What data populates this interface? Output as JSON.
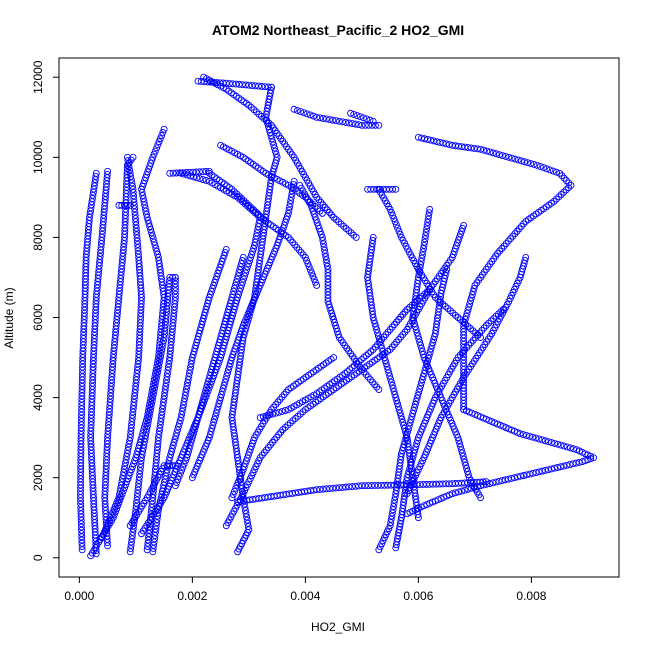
{
  "chart_data": {
    "type": "scatter",
    "title": "ATOM2 Northeast_Pacific_2 HO2_GMI",
    "xlabel": "HO2_GMI",
    "ylabel": "Altitude (m)",
    "xlim": [
      -0.00036,
      0.00955
    ],
    "ylim": [
      -480,
      12480
    ],
    "x_ticks": [
      0,
      0.002,
      0.004,
      0.006,
      0.008
    ],
    "x_tick_labels": [
      "0.000",
      "0.002",
      "0.004",
      "0.006",
      "0.008"
    ],
    "y_ticks": [
      0,
      2000,
      4000,
      6000,
      8000,
      10000,
      12000
    ],
    "y_tick_labels": [
      "0",
      "2000",
      "4000",
      "6000",
      "8000",
      "10000",
      "12000"
    ],
    "marker": "open-circle",
    "color": "#0000ff",
    "grid": false,
    "legend": "none",
    "profiles": [
      [
        [
          5e-05,
          200
        ],
        [
          2e-05,
          1500
        ],
        [
          3e-05,
          3000
        ],
        [
          6e-05,
          5000
        ],
        [
          0.0001,
          6500
        ],
        [
          0.00012,
          7500
        ],
        [
          0.00018,
          8500
        ],
        [
          0.0003,
          9600
        ]
      ],
      [
        [
          0.0003,
          100
        ],
        [
          0.00025,
          1500
        ],
        [
          0.0002,
          3000
        ],
        [
          0.00025,
          5000
        ],
        [
          0.0003,
          6500
        ],
        [
          0.0004,
          8000
        ],
        [
          0.0005,
          9650
        ]
      ],
      [
        [
          0.0005,
          300
        ],
        [
          0.00045,
          1500
        ],
        [
          0.0005,
          3000
        ],
        [
          0.0006,
          5000
        ],
        [
          0.0007,
          6500
        ],
        [
          0.0008,
          8000
        ],
        [
          0.00085,
          9800
        ],
        [
          0.00095,
          10000
        ]
      ],
      [
        [
          0.0004,
          500
        ],
        [
          0.0007,
          1500
        ],
        [
          0.0009,
          3000
        ],
        [
          0.00105,
          5000
        ],
        [
          0.0011,
          6500
        ],
        [
          0.00105,
          7500
        ],
        [
          0.00095,
          9200
        ],
        [
          0.00085,
          10000
        ]
      ],
      [
        [
          0.0002,
          50
        ],
        [
          0.0006,
          1000
        ],
        [
          0.001,
          2500
        ],
        [
          0.0012,
          3500
        ],
        [
          0.0014,
          5000
        ],
        [
          0.0015,
          6500
        ],
        [
          0.0014,
          7500
        ],
        [
          0.0012,
          8500
        ],
        [
          0.0011,
          9200
        ],
        [
          0.0013,
          10000
        ],
        [
          0.0015,
          10700
        ]
      ],
      [
        [
          0.0009,
          150
        ],
        [
          0.001,
          1200
        ],
        [
          0.0011,
          2500
        ],
        [
          0.0013,
          4000
        ],
        [
          0.0015,
          5500
        ],
        [
          0.0016,
          7000
        ],
        [
          0.0017,
          7000
        ]
      ],
      [
        [
          0.0012,
          200
        ],
        [
          0.0013,
          1500
        ],
        [
          0.0014,
          3000
        ],
        [
          0.0016,
          5000
        ],
        [
          0.0017,
          6500
        ],
        [
          0.0017,
          7000
        ]
      ],
      [
        [
          0.0013,
          150
        ],
        [
          0.0014,
          1200
        ],
        [
          0.0016,
          2500
        ],
        [
          0.0018,
          3500
        ],
        [
          0.002,
          5000
        ],
        [
          0.0023,
          6500
        ],
        [
          0.0026,
          7700
        ]
      ],
      [
        [
          0.0009,
          800
        ],
        [
          0.0012,
          1500
        ],
        [
          0.0015,
          2300
        ],
        [
          0.0017,
          2300
        ]
      ],
      [
        [
          0.0011,
          600
        ],
        [
          0.0015,
          1500
        ],
        [
          0.0018,
          2500
        ],
        [
          0.0021,
          3500
        ],
        [
          0.0025,
          5000
        ],
        [
          0.0028,
          6500
        ],
        [
          0.0031,
          7800
        ],
        [
          0.0032,
          8500
        ],
        [
          0.0028,
          9000
        ],
        [
          0.0023,
          9400
        ],
        [
          0.0018,
          9600
        ]
      ],
      [
        [
          0.0017,
          1800
        ],
        [
          0.0019,
          2500
        ],
        [
          0.0021,
          3500
        ],
        [
          0.0024,
          5000
        ],
        [
          0.0027,
          6500
        ],
        [
          0.0029,
          7500
        ]
      ],
      [
        [
          0.0028,
          150
        ],
        [
          0.003,
          700
        ],
        [
          0.0029,
          1500
        ],
        [
          0.0028,
          2500
        ],
        [
          0.0027,
          3500
        ],
        [
          0.0028,
          4500
        ],
        [
          0.0029,
          5500
        ],
        [
          0.0031,
          6500
        ],
        [
          0.0032,
          7500
        ],
        [
          0.0033,
          8500
        ],
        [
          0.0034,
          9500
        ],
        [
          0.0035,
          10000
        ],
        [
          0.0033,
          11000
        ],
        [
          0.0034,
          11750
        ]
      ],
      [
        [
          0.0022,
          12000
        ],
        [
          0.0026,
          11700
        ],
        [
          0.003,
          11300
        ],
        [
          0.0034,
          10800
        ],
        [
          0.0036,
          10400
        ],
        [
          0.0038,
          10000
        ],
        [
          0.004,
          9500
        ],
        [
          0.0042,
          9000
        ],
        [
          0.0045,
          8500
        ],
        [
          0.0049,
          8000
        ]
      ],
      [
        [
          0.0025,
          10300
        ],
        [
          0.0029,
          10000
        ],
        [
          0.0033,
          9600
        ],
        [
          0.0037,
          9300
        ],
        [
          0.004,
          9000
        ],
        [
          0.0043,
          8600
        ]
      ],
      [
        [
          0.0039,
          9300
        ],
        [
          0.0041,
          8800
        ],
        [
          0.0043,
          8000
        ],
        [
          0.0044,
          7200
        ],
        [
          0.0044,
          6400
        ],
        [
          0.0046,
          5500
        ],
        [
          0.005,
          4700
        ],
        [
          0.0053,
          4200
        ]
      ],
      [
        [
          0.0023,
          9600
        ],
        [
          0.0027,
          9200
        ],
        [
          0.003,
          8800
        ],
        [
          0.0033,
          8400
        ],
        [
          0.0037,
          8000
        ],
        [
          0.004,
          7500
        ],
        [
          0.0042,
          6800
        ]
      ],
      [
        [
          0.0038,
          9400
        ],
        [
          0.0037,
          8600
        ],
        [
          0.0035,
          7800
        ],
        [
          0.0032,
          6800
        ],
        [
          0.0029,
          5800
        ],
        [
          0.0027,
          5000
        ],
        [
          0.0025,
          4000
        ],
        [
          0.0023,
          3000
        ],
        [
          0.002,
          2000
        ]
      ],
      [
        [
          0.0026,
          800
        ],
        [
          0.0029,
          1600
        ],
        [
          0.0032,
          2500
        ],
        [
          0.0036,
          3200
        ],
        [
          0.004,
          3700
        ],
        [
          0.0045,
          4200
        ],
        [
          0.005,
          4700
        ],
        [
          0.0055,
          5200
        ],
        [
          0.0058,
          5700
        ],
        [
          0.006,
          6200
        ],
        [
          0.0062,
          6700
        ]
      ],
      [
        [
          0.0032,
          3500
        ],
        [
          0.0037,
          3700
        ],
        [
          0.0042,
          4100
        ],
        [
          0.0047,
          4600
        ],
        [
          0.0052,
          5200
        ],
        [
          0.0055,
          5700
        ],
        [
          0.0058,
          6200
        ],
        [
          0.0062,
          6700
        ],
        [
          0.0066,
          7500
        ],
        [
          0.0068,
          8300
        ]
      ],
      [
        [
          0.0028,
          1400
        ],
        [
          0.0035,
          1550
        ],
        [
          0.0042,
          1700
        ],
        [
          0.005,
          1800
        ],
        [
          0.0058,
          1820
        ],
        [
          0.0066,
          1850
        ],
        [
          0.0072,
          1900
        ]
      ],
      [
        [
          0.0027,
          1500
        ],
        [
          0.0029,
          2200
        ],
        [
          0.0031,
          3000
        ],
        [
          0.0034,
          3700
        ],
        [
          0.0037,
          4200
        ],
        [
          0.0041,
          4600
        ],
        [
          0.0045,
          5000
        ]
      ],
      [
        [
          0.0053,
          200
        ],
        [
          0.0055,
          800
        ],
        [
          0.0056,
          1600
        ],
        [
          0.0057,
          2600
        ],
        [
          0.0059,
          3600
        ],
        [
          0.0061,
          4600
        ],
        [
          0.0063,
          5600
        ],
        [
          0.0064,
          6600
        ],
        [
          0.0065,
          7200
        ]
      ],
      [
        [
          0.0056,
          250
        ],
        [
          0.0057,
          1000
        ],
        [
          0.0058,
          2000
        ],
        [
          0.006,
          3000
        ],
        [
          0.0063,
          4000
        ],
        [
          0.0067,
          5000
        ],
        [
          0.0072,
          5800
        ],
        [
          0.0075,
          6200
        ]
      ],
      [
        [
          0.0058,
          1600
        ],
        [
          0.0061,
          2500
        ],
        [
          0.0064,
          3500
        ],
        [
          0.0068,
          4500
        ],
        [
          0.0073,
          5600
        ],
        [
          0.0076,
          6400
        ],
        [
          0.0078,
          7000
        ],
        [
          0.0079,
          7500
        ]
      ],
      [
        [
          0.0053,
          9200
        ],
        [
          0.0055,
          8700
        ],
        [
          0.0057,
          8000
        ],
        [
          0.006,
          7200
        ],
        [
          0.0063,
          6500
        ],
        [
          0.0067,
          6000
        ],
        [
          0.0071,
          5500
        ]
      ],
      [
        [
          0.0052,
          8000
        ],
        [
          0.0051,
          7000
        ],
        [
          0.0052,
          6000
        ],
        [
          0.0054,
          5000
        ],
        [
          0.0056,
          4000
        ],
        [
          0.0058,
          3000
        ],
        [
          0.0059,
          2000
        ],
        [
          0.006,
          1000
        ]
      ],
      [
        [
          0.0062,
          8700
        ],
        [
          0.0061,
          7800
        ],
        [
          0.006,
          7000
        ],
        [
          0.0059,
          6000
        ],
        [
          0.0061,
          5000
        ],
        [
          0.0064,
          4000
        ],
        [
          0.0067,
          3000
        ],
        [
          0.0069,
          2000
        ],
        [
          0.0071,
          1500
        ]
      ],
      [
        [
          0.0068,
          3700
        ],
        [
          0.0073,
          3400
        ],
        [
          0.0078,
          3100
        ],
        [
          0.0083,
          2900
        ],
        [
          0.0088,
          2700
        ],
        [
          0.0091,
          2500
        ],
        [
          0.0089,
          2400
        ],
        [
          0.0083,
          2200
        ],
        [
          0.0077,
          2000
        ],
        [
          0.0071,
          1800
        ],
        [
          0.0066,
          1600
        ],
        [
          0.0061,
          1300
        ],
        [
          0.0058,
          1100
        ]
      ],
      [
        [
          0.006,
          10500
        ],
        [
          0.0066,
          10300
        ],
        [
          0.0071,
          10200
        ],
        [
          0.0076,
          10000
        ],
        [
          0.0081,
          9800
        ],
        [
          0.0085,
          9600
        ],
        [
          0.0087,
          9300
        ],
        [
          0.0084,
          8900
        ],
        [
          0.0079,
          8400
        ],
        [
          0.0074,
          7600
        ],
        [
          0.007,
          6800
        ],
        [
          0.0068,
          5800
        ],
        [
          0.0068,
          4700
        ],
        [
          0.0068,
          3700
        ]
      ],
      [
        [
          0.0038,
          11200
        ],
        [
          0.0042,
          11000
        ],
        [
          0.0046,
          10900
        ],
        [
          0.005,
          10800
        ],
        [
          0.0053,
          10800
        ]
      ],
      [
        [
          0.0048,
          11100
        ],
        [
          0.0052,
          10900
        ]
      ],
      [
        [
          0.0021,
          11900
        ],
        [
          0.0026,
          11850
        ],
        [
          0.003,
          11800
        ],
        [
          0.0034,
          11750
        ]
      ],
      [
        [
          0.0051,
          9200
        ],
        [
          0.0056,
          9200
        ]
      ],
      [
        [
          0.0007,
          8800
        ],
        [
          0.0009,
          8800
        ]
      ],
      [
        [
          0.0016,
          9600
        ],
        [
          0.0023,
          9650
        ]
      ]
    ]
  }
}
